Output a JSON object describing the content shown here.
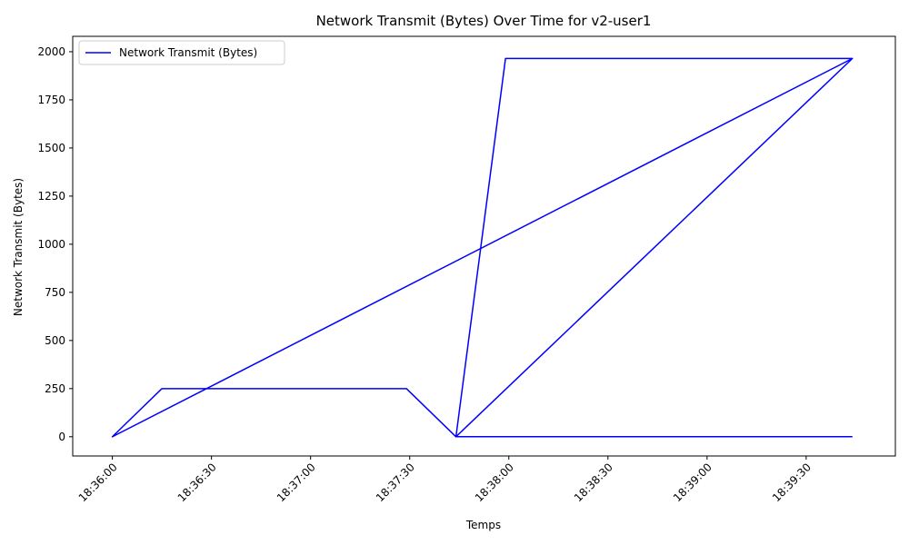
{
  "chart_data": {
    "type": "line",
    "title": "Network Transmit (Bytes) Over Time for v2-user1",
    "xlabel": "Temps",
    "ylabel": "Network Transmit (Bytes)",
    "x_ticks": [
      "18:36:00",
      "18:36:30",
      "18:37:00",
      "18:37:30",
      "18:38:00",
      "18:38:30",
      "18:39:00",
      "18:39:30"
    ],
    "y_ticks": [
      "0",
      "250",
      "500",
      "750",
      "1000",
      "1250",
      "1500",
      "1750",
      "2000"
    ],
    "xlim": [
      "18:35:48",
      "18:39:57"
    ],
    "ylim": [
      -100,
      2080
    ],
    "grid": false,
    "legend_position": "upper-left",
    "series": [
      {
        "name": "Network Transmit (Bytes)",
        "color": "#0000ff",
        "points": [
          {
            "x": "18:36:00",
            "y": 0
          },
          {
            "x": "18:36:15",
            "y": 250
          },
          {
            "x": "18:37:29",
            "y": 250
          },
          {
            "x": "18:37:44",
            "y": 0
          },
          {
            "x": "18:37:59",
            "y": 1965
          },
          {
            "x": "18:39:44",
            "y": 1965
          },
          {
            "x": "18:36:00",
            "y": 0
          },
          {
            "x": "18:39:44",
            "y": 1965
          },
          {
            "x": "18:37:44",
            "y": 0
          },
          {
            "x": "18:39:44",
            "y": 0
          }
        ]
      }
    ]
  }
}
